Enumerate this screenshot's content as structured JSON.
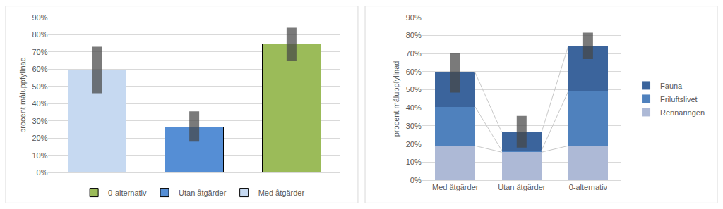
{
  "chart_data": [
    {
      "type": "bar",
      "categories": [
        "Med åtgärder",
        "Utan åtgärder",
        "0-alternativ"
      ],
      "values": [
        59.5,
        26.5,
        74.5
      ],
      "ranges": [
        [
          46,
          73
        ],
        [
          18,
          35.5
        ],
        [
          65,
          84
        ]
      ],
      "colors": [
        "#c6d9f1",
        "#558ed5",
        "#9bbb59"
      ],
      "ylabel": "procent måluppfyllnad",
      "ylim": [
        0,
        90
      ],
      "yticks": [
        {
          "value": 0,
          "label": "0%"
        },
        {
          "value": 10,
          "label": "10%"
        },
        {
          "value": 20,
          "label": "20%"
        },
        {
          "value": 30,
          "label": "30%"
        },
        {
          "value": 40,
          "label": "40%"
        },
        {
          "value": 50,
          "label": "50%"
        },
        {
          "value": 60,
          "label": "60%"
        },
        {
          "value": 70,
          "label": "70%"
        },
        {
          "value": 80,
          "label": "80%"
        },
        {
          "value": 90,
          "label": "90%"
        }
      ],
      "grid": true,
      "legend": "bottom",
      "tick_labels": "y"
    },
    {
      "type": "bar",
      "stacked": true,
      "categories": [
        "Med åtgärder",
        "Utan åtgärder",
        "0-alternativ"
      ],
      "series": [
        {
          "name": "Rennäringen",
          "color": "#adb9d6",
          "values": [
            19,
            15.5,
            19
          ]
        },
        {
          "name": "Friluftslivet",
          "color": "#4f81bd",
          "values": [
            21.5,
            1,
            30
          ]
        },
        {
          "name": "Fauna",
          "color": "#3b649c",
          "values": [
            19,
            10,
            25
          ]
        }
      ],
      "ranges": [
        [
          48.5,
          70.5
        ],
        [
          18,
          35.5
        ],
        [
          67,
          81.5
        ]
      ],
      "ylabel": "procent måluppfyllnad",
      "ylim": [
        0,
        90
      ],
      "yticks": [
        {
          "value": 0,
          "label": "0%"
        },
        {
          "value": 10,
          "label": "10%"
        },
        {
          "value": 20,
          "label": "20%"
        },
        {
          "value": 30,
          "label": "30%"
        },
        {
          "value": 40,
          "label": "40%"
        },
        {
          "value": 50,
          "label": "50%"
        },
        {
          "value": 60,
          "label": "60%"
        },
        {
          "value": 70,
          "label": "70%"
        },
        {
          "value": 80,
          "label": "80%"
        },
        {
          "value": 90,
          "label": "90%"
        }
      ],
      "grid": true,
      "legend": "right"
    }
  ]
}
